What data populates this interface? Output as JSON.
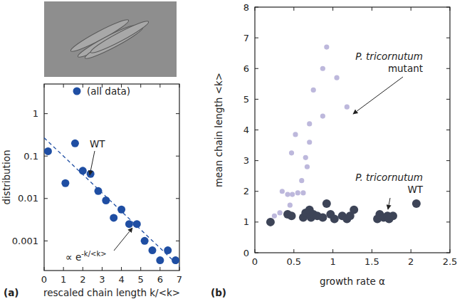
{
  "chart_data": [
    {
      "type": "scatter",
      "label": "(a)",
      "x_label": "rescaled chain length k/<k>",
      "y_label": "distribution",
      "log": "y",
      "grid": false,
      "legend": "top",
      "xlim": [
        0,
        7
      ],
      "xticks": [
        0,
        1,
        2,
        3,
        4,
        5,
        6,
        7
      ],
      "ylim": [
        0.0002,
        5
      ],
      "yticks": [
        0.001,
        0.01,
        0.1,
        1
      ],
      "series": [
        {
          "name": "(all data)",
          "type": "scatter",
          "marker": "circle",
          "color": "#1f4ea3",
          "x": [
            0.2,
            1.1,
            1.6,
            2.0,
            2.4,
            2.8,
            3.2,
            3.6,
            4.0,
            4.4,
            4.8,
            5.2,
            5.6,
            6.0,
            6.4,
            6.8
          ],
          "values": [
            0.13,
            0.023,
            0.2,
            0.045,
            0.038,
            0.015,
            0.009,
            0.0035,
            0.0055,
            0.0025,
            0.0025,
            0.001,
            0.0006,
            0.00035,
            0.0006,
            0.00035
          ]
        },
        {
          "type": "line",
          "line_style": "dashed",
          "color": "#1f4ea3",
          "x": [
            0,
            7
          ],
          "values": [
            0.27,
            0.00025
          ]
        }
      ],
      "annotations": [
        {
          "text": "WT"
        },
        {
          "text": "∝ e",
          "superscript": "-k/<k>"
        }
      ]
    },
    {
      "type": "scatter",
      "label": "(b)",
      "x_label": "growth rate α",
      "y_label": "mean chain length <k>",
      "grid": false,
      "xlim": [
        0,
        2.5
      ],
      "xticks": [
        0,
        0.5,
        1,
        1.5,
        2,
        2.5
      ],
      "ylim": [
        0,
        8
      ],
      "yticks": [
        0,
        1,
        2,
        3,
        4,
        5,
        6,
        7,
        8
      ],
      "series": [
        {
          "name": "P. tricornutum mutant",
          "marker": "circle",
          "color": "#bdb8dc",
          "x": [
            0.2,
            0.25,
            0.32,
            0.35,
            0.42,
            0.45,
            0.47,
            0.48,
            0.52,
            0.55,
            0.6,
            0.62,
            0.65,
            0.67,
            0.7,
            0.7,
            0.75,
            0.87,
            0.87,
            0.92,
            1.05,
            1.18
          ],
          "values": [
            1.05,
            1.2,
            1.3,
            2.0,
            1.9,
            1.55,
            3.25,
            1.9,
            3.85,
            1.95,
            2.35,
            1.95,
            3.1,
            2.8,
            3.6,
            4.2,
            5.3,
            4.45,
            6.0,
            6.7,
            5.7,
            4.75
          ]
        },
        {
          "name": "P. tricornutum WT",
          "marker": "circle",
          "color": "#3d4457",
          "x": [
            0.2,
            0.42,
            0.47,
            0.62,
            0.65,
            0.7,
            0.72,
            0.75,
            0.8,
            0.87,
            0.92,
            0.97,
            1.02,
            1.12,
            1.18,
            1.22,
            1.27,
            1.57,
            1.6,
            1.65,
            1.7,
            1.72,
            1.77,
            2.07
          ],
          "values": [
            1.0,
            1.25,
            1.2,
            1.15,
            1.3,
            1.4,
            1.15,
            1.25,
            1.2,
            1.15,
            1.6,
            1.25,
            1.1,
            1.2,
            1.1,
            1.2,
            1.4,
            1.1,
            1.25,
            1.15,
            1.2,
            1.1,
            1.2,
            1.6
          ]
        }
      ]
    }
  ]
}
